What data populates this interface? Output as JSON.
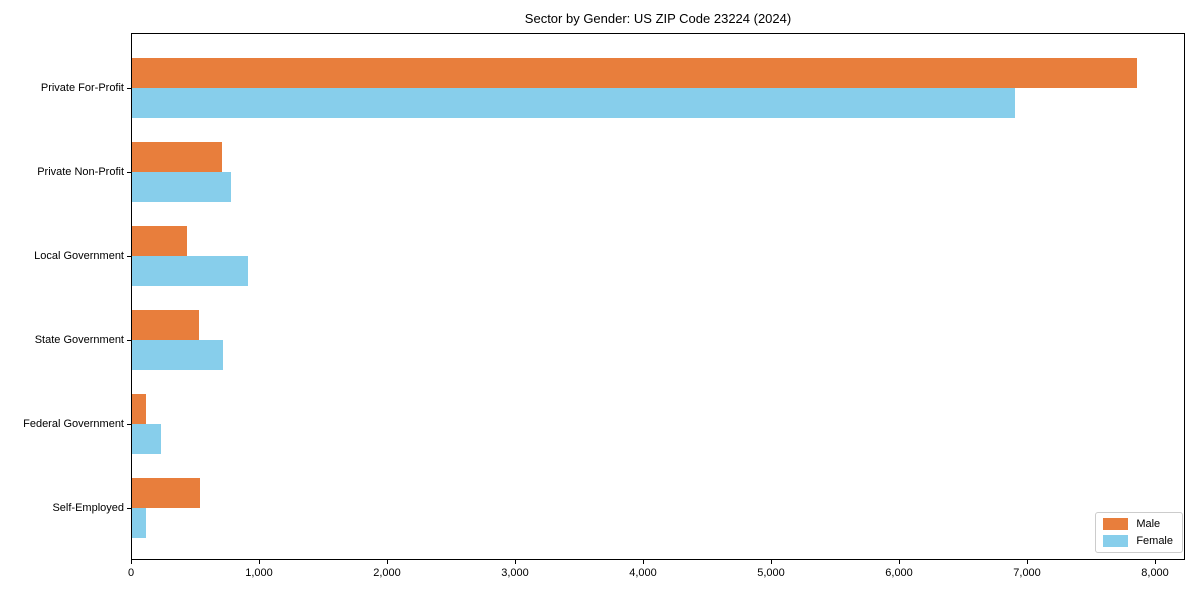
{
  "chart_data": {
    "type": "bar",
    "orientation": "horizontal",
    "title": "Sector by Gender: US ZIP Code 23224 (2024)",
    "xlabel": "",
    "ylabel": "",
    "categories": [
      "Private For-Profit",
      "Private Non-Profit",
      "Local Government",
      "State Government",
      "Federal Government",
      "Self-Employed"
    ],
    "series": [
      {
        "name": "Male",
        "color": "#e87e3c",
        "values": [
          7850,
          700,
          430,
          520,
          110,
          530
        ]
      },
      {
        "name": "Female",
        "color": "#87ceeb",
        "values": [
          6900,
          770,
          910,
          710,
          230,
          110
        ]
      }
    ],
    "xlim": [
      0,
      8234
    ],
    "x_ticks": [
      0,
      1000,
      2000,
      3000,
      4000,
      5000,
      6000,
      7000,
      8000
    ],
    "x_tick_labels": [
      "0",
      "1,000",
      "2,000",
      "3,000",
      "4,000",
      "5,000",
      "6,000",
      "7,000",
      "8,000"
    ],
    "grid": false,
    "legend_position": "lower right"
  },
  "legend": {
    "items": [
      {
        "label": "Male",
        "color": "#e87e3c"
      },
      {
        "label": "Female",
        "color": "#87ceeb"
      }
    ]
  },
  "colors": {
    "male": "#e87e3c",
    "female": "#87ceeb",
    "spine": "#000000",
    "legend_border": "#cccccc",
    "background": "#ffffff"
  }
}
